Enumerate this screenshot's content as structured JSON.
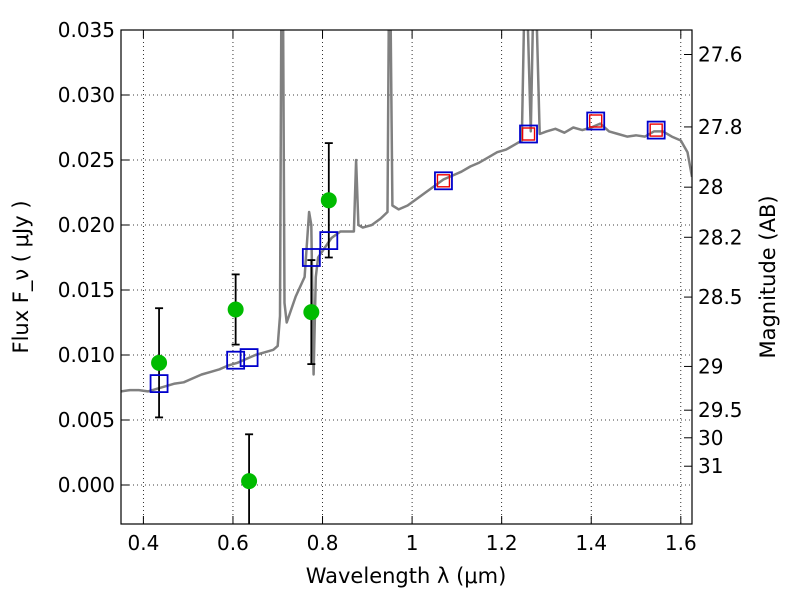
{
  "chart_data": {
    "type": "scatter",
    "title": "",
    "xlabel": "Wavelength  λ (μm)",
    "ylabel": "Flux  F_ν  ( μJy )",
    "y2label": "Magnitude (AB)",
    "xlim": [
      0.35,
      1.625
    ],
    "ylim": [
      -0.003,
      0.035
    ],
    "grid": true,
    "grid_style": "dotted",
    "x_ticks": [
      0.4,
      0.6,
      0.8,
      1.0,
      1.2,
      1.4,
      1.6
    ],
    "x_tick_labels": [
      "0.4",
      "0.6",
      "0.8",
      "1",
      "1.2",
      "1.4",
      "1.6"
    ],
    "y_ticks": [
      0.0,
      0.005,
      0.01,
      0.015,
      0.02,
      0.025,
      0.03,
      0.035
    ],
    "y_tick_labels": [
      "0.000",
      "0.005",
      "0.010",
      "0.015",
      "0.020",
      "0.025",
      "0.030",
      "0.035"
    ],
    "y2_ticks": [
      27.6,
      27.8,
      28,
      28.2,
      28.5,
      29,
      29.5,
      30,
      31
    ],
    "y2_tick_labels": [
      "27.6",
      "27.8",
      "28",
      "28.2",
      "28.5",
      "29",
      "29.5",
      "30",
      "31"
    ],
    "colors": {
      "spectrum": "#808080",
      "photometry": "#00bb00",
      "errorbar": "#000000",
      "model_box": "#0000cc",
      "model_box_red": "#ee0000"
    },
    "series": [
      {
        "kind": "spectrum",
        "points": [
          [
            0.35,
            0.0072
          ],
          [
            0.37,
            0.0073
          ],
          [
            0.39,
            0.0073
          ],
          [
            0.41,
            0.0072
          ],
          [
            0.43,
            0.0074
          ],
          [
            0.45,
            0.0076
          ],
          [
            0.47,
            0.0078
          ],
          [
            0.49,
            0.0079
          ],
          [
            0.51,
            0.0082
          ],
          [
            0.53,
            0.0085
          ],
          [
            0.55,
            0.0087
          ],
          [
            0.57,
            0.0089
          ],
          [
            0.59,
            0.0092
          ],
          [
            0.61,
            0.0094
          ],
          [
            0.63,
            0.0097
          ],
          [
            0.65,
            0.01
          ],
          [
            0.67,
            0.0102
          ],
          [
            0.69,
            0.0104
          ],
          [
            0.7,
            0.0107
          ],
          [
            0.705,
            0.013
          ],
          [
            0.708,
            0.036
          ],
          [
            0.712,
            0.036
          ],
          [
            0.715,
            0.014
          ],
          [
            0.72,
            0.0125
          ],
          [
            0.74,
            0.0145
          ],
          [
            0.76,
            0.016
          ],
          [
            0.77,
            0.021
          ],
          [
            0.775,
            0.02
          ],
          [
            0.78,
            0.0085
          ],
          [
            0.785,
            0.016
          ],
          [
            0.79,
            0.0175
          ],
          [
            0.8,
            0.018
          ],
          [
            0.82,
            0.019
          ],
          [
            0.84,
            0.0195
          ],
          [
            0.86,
            0.0195
          ],
          [
            0.87,
            0.0195
          ],
          [
            0.875,
            0.025
          ],
          [
            0.88,
            0.02
          ],
          [
            0.89,
            0.0198
          ],
          [
            0.91,
            0.02
          ],
          [
            0.93,
            0.0205
          ],
          [
            0.945,
            0.021
          ],
          [
            0.948,
            0.036
          ],
          [
            0.952,
            0.036
          ],
          [
            0.956,
            0.0215
          ],
          [
            0.97,
            0.0212
          ],
          [
            0.99,
            0.0215
          ],
          [
            1.01,
            0.022
          ],
          [
            1.03,
            0.0225
          ],
          [
            1.05,
            0.023
          ],
          [
            1.07,
            0.0235
          ],
          [
            1.09,
            0.0238
          ],
          [
            1.11,
            0.0241
          ],
          [
            1.13,
            0.0245
          ],
          [
            1.15,
            0.0248
          ],
          [
            1.17,
            0.0252
          ],
          [
            1.19,
            0.0256
          ],
          [
            1.21,
            0.0258
          ],
          [
            1.23,
            0.0262
          ],
          [
            1.245,
            0.0265
          ],
          [
            1.25,
            0.036
          ],
          [
            1.258,
            0.036
          ],
          [
            1.265,
            0.0272
          ],
          [
            1.27,
            0.036
          ],
          [
            1.278,
            0.036
          ],
          [
            1.285,
            0.027
          ],
          [
            1.3,
            0.0272
          ],
          [
            1.32,
            0.0274
          ],
          [
            1.34,
            0.0271
          ],
          [
            1.36,
            0.0275
          ],
          [
            1.38,
            0.0273
          ],
          [
            1.4,
            0.0275
          ],
          [
            1.42,
            0.0278
          ],
          [
            1.44,
            0.0272
          ],
          [
            1.46,
            0.027
          ],
          [
            1.48,
            0.0268
          ],
          [
            1.5,
            0.0269
          ],
          [
            1.52,
            0.0268
          ],
          [
            1.54,
            0.0272
          ],
          [
            1.56,
            0.0272
          ],
          [
            1.58,
            0.0268
          ],
          [
            1.6,
            0.0265
          ],
          [
            1.615,
            0.0256
          ],
          [
            1.625,
            0.0237
          ]
        ]
      },
      {
        "kind": "photometry",
        "points": [
          {
            "x": 0.435,
            "y": 0.0094,
            "yerr_lo": 0.0042,
            "yerr_hi": 0.0042
          },
          {
            "x": 0.606,
            "y": 0.0135,
            "yerr_lo": 0.0027,
            "yerr_hi": 0.0027
          },
          {
            "x": 0.636,
            "y": 0.0003,
            "yerr_lo": 0.0036,
            "yerr_hi": 0.0036
          },
          {
            "x": 0.775,
            "y": 0.0133,
            "yerr_lo": 0.004,
            "yerr_hi": 0.004
          },
          {
            "x": 0.814,
            "y": 0.0219,
            "yerr_lo": 0.0044,
            "yerr_hi": 0.0044
          }
        ]
      },
      {
        "kind": "model_synthetic",
        "points": [
          {
            "x": 0.435,
            "y": 0.0078,
            "inner_red": false
          },
          {
            "x": 0.606,
            "y": 0.0096,
            "inner_red": false
          },
          {
            "x": 0.636,
            "y": 0.0098,
            "inner_red": false
          },
          {
            "x": 0.775,
            "y": 0.0175,
            "inner_red": false
          },
          {
            "x": 0.814,
            "y": 0.0188,
            "inner_red": false
          },
          {
            "x": 1.07,
            "y": 0.0234,
            "inner_red": true
          },
          {
            "x": 1.26,
            "y": 0.027,
            "inner_red": true
          },
          {
            "x": 1.41,
            "y": 0.028,
            "inner_red": true
          },
          {
            "x": 1.545,
            "y": 0.0273,
            "inner_red": true
          }
        ]
      }
    ]
  }
}
